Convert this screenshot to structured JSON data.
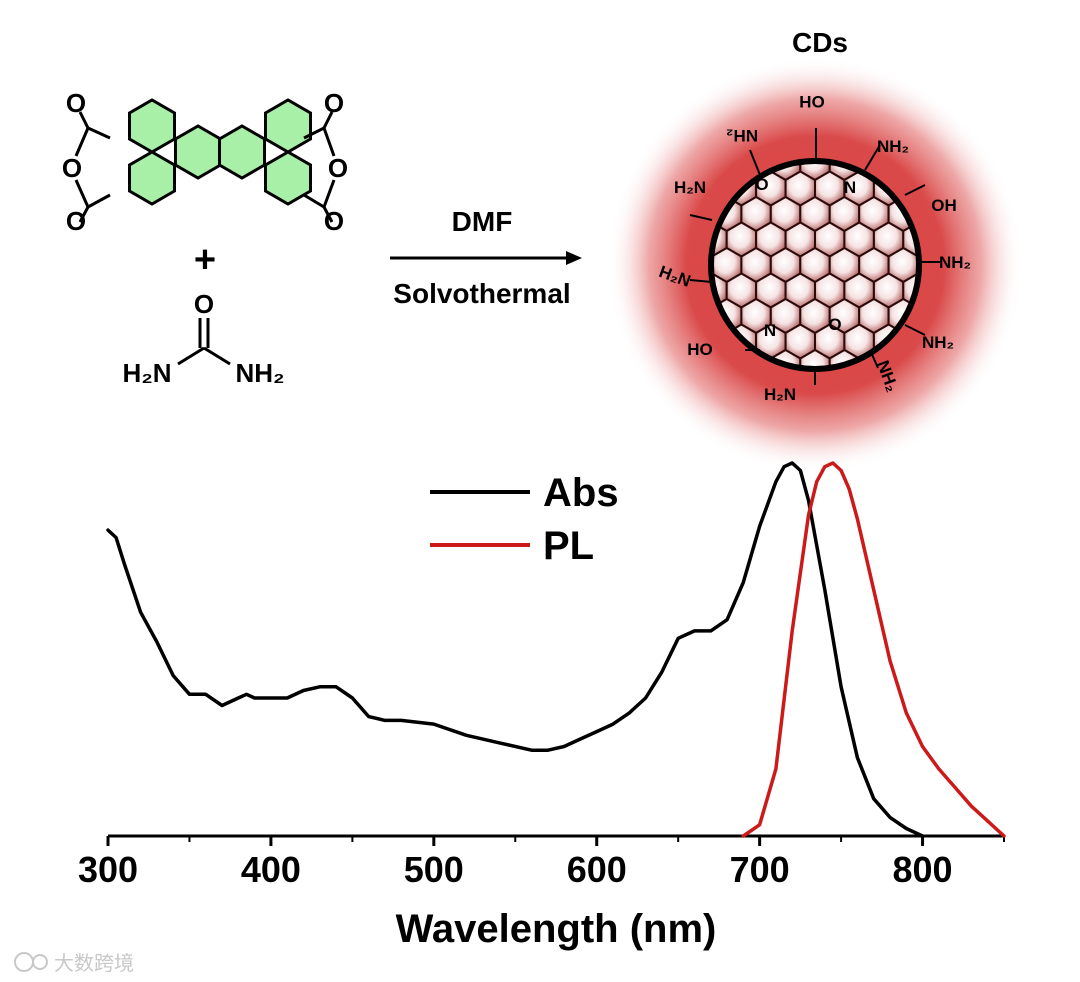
{
  "scheme": {
    "reactant_label_plus": "+",
    "urea": {
      "o": "O",
      "left": "H₂N",
      "right": "NH₂"
    },
    "anhydride_atom": "O",
    "arrow_top": "DMF",
    "arrow_bottom": "Solvothermal",
    "product_title": "CDs",
    "surface_groups": {
      "nh2": "NH₂",
      "h2n": "H₂N",
      "cooh": "OH",
      "hooc": "HO",
      "o": "O",
      "n": "N"
    },
    "colors": {
      "ring_fill": "#a8f0a8",
      "glow": "#d84040",
      "core": "#ffffff"
    }
  },
  "chart_data": {
    "type": "line",
    "xlabel": "Wavelength (nm)",
    "ylabel": "",
    "xlim": [
      300,
      850
    ],
    "ylim": [
      0,
      1
    ],
    "x_ticks": [
      300,
      400,
      500,
      600,
      700,
      800
    ],
    "tick_labels": [
      "300",
      "400",
      "500",
      "600",
      "700",
      "800"
    ],
    "grid": false,
    "legend_position": "top-center",
    "series": [
      {
        "name": "Abs",
        "color": "#000000",
        "x": [
          300,
          305,
          310,
          320,
          330,
          340,
          350,
          360,
          370,
          380,
          385,
          390,
          400,
          410,
          420,
          430,
          440,
          450,
          460,
          470,
          480,
          500,
          520,
          540,
          560,
          570,
          580,
          590,
          600,
          610,
          620,
          630,
          640,
          650,
          660,
          670,
          680,
          690,
          700,
          710,
          715,
          720,
          725,
          730,
          740,
          750,
          760,
          770,
          780,
          790,
          800
        ],
        "y": [
          0.82,
          0.8,
          0.73,
          0.6,
          0.52,
          0.43,
          0.38,
          0.38,
          0.35,
          0.37,
          0.38,
          0.37,
          0.37,
          0.37,
          0.39,
          0.4,
          0.4,
          0.37,
          0.32,
          0.31,
          0.31,
          0.3,
          0.27,
          0.25,
          0.23,
          0.23,
          0.24,
          0.26,
          0.28,
          0.3,
          0.33,
          0.37,
          0.44,
          0.53,
          0.55,
          0.55,
          0.58,
          0.68,
          0.83,
          0.95,
          0.99,
          1.0,
          0.98,
          0.9,
          0.66,
          0.4,
          0.21,
          0.1,
          0.05,
          0.02,
          0.0
        ]
      },
      {
        "name": "PL",
        "color": "#cc1a1a",
        "x": [
          690,
          700,
          710,
          720,
          730,
          735,
          740,
          745,
          750,
          755,
          760,
          770,
          780,
          790,
          800,
          810,
          820,
          830,
          840,
          850
        ],
        "y": [
          0.0,
          0.03,
          0.18,
          0.55,
          0.86,
          0.95,
          0.99,
          1.0,
          0.98,
          0.93,
          0.85,
          0.66,
          0.47,
          0.33,
          0.24,
          0.18,
          0.13,
          0.08,
          0.04,
          0.0
        ]
      }
    ]
  },
  "watermark": "大数跨境"
}
